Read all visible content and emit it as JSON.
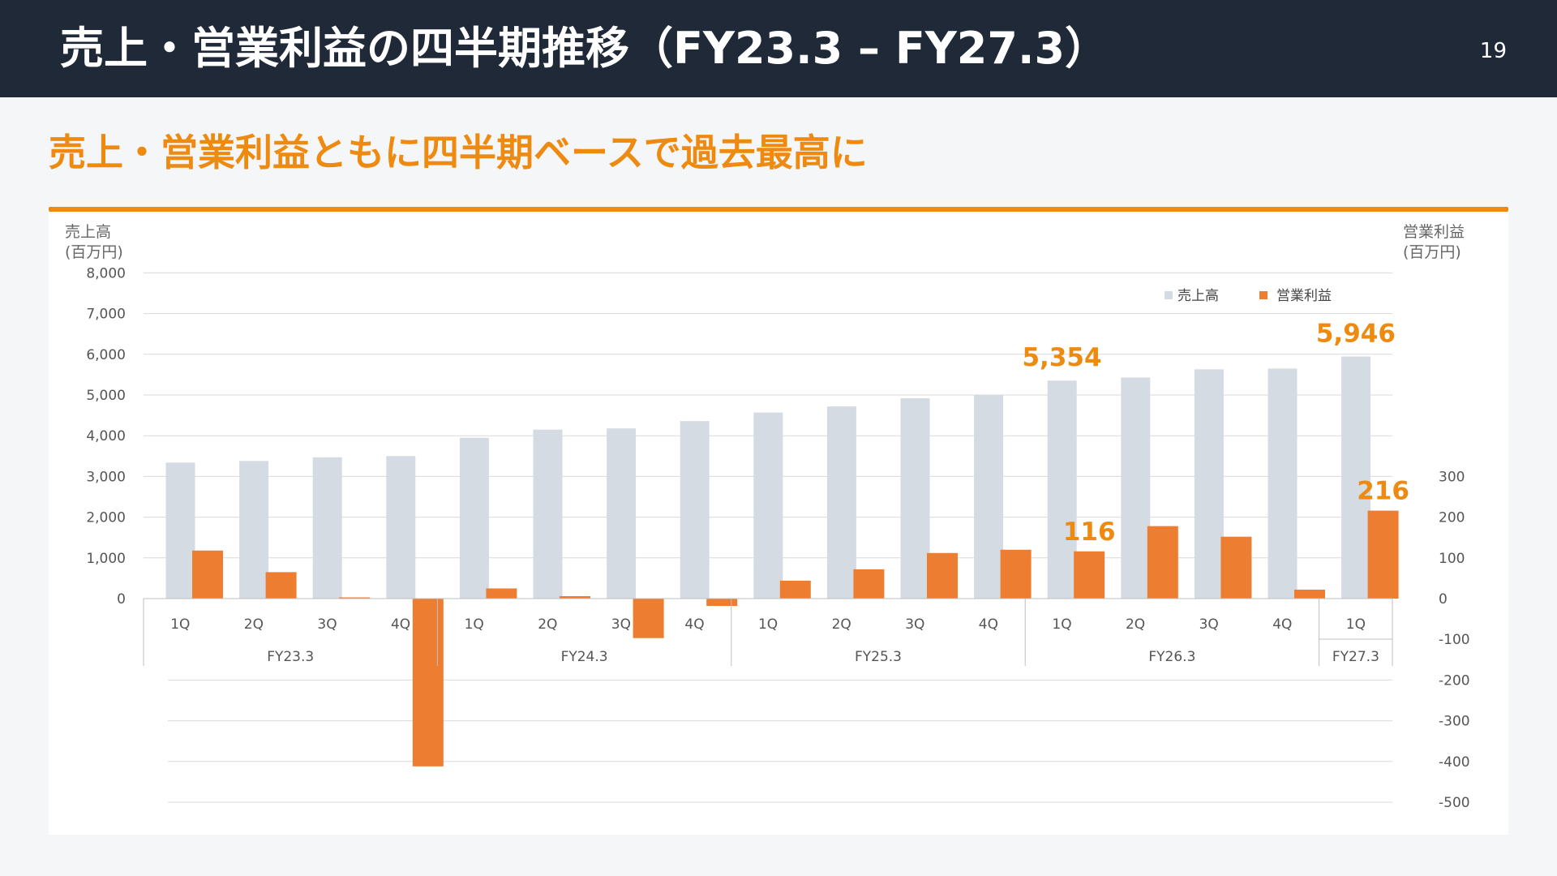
{
  "header": {
    "title": "売上・営業利益の四半期推移（FY23.3 – FY27.3）",
    "page_number": "19"
  },
  "subtitle": "売上・営業利益ともに四半期ベースで過去最高に",
  "colors": {
    "header_bg": "#1f2937",
    "accent": "#ed8a0f",
    "sales_bar": "#d5dbe2",
    "profit_bar": "#ed7d31"
  },
  "chart_data": {
    "type": "bar",
    "left_axis": {
      "title_line1": "売上高",
      "title_line2": "(百万円)",
      "ylim": [
        0,
        8000
      ],
      "ticks": [
        "8,000",
        "7,000",
        "6,000",
        "5,000",
        "4,000",
        "3,000",
        "2,000",
        "1,000",
        "0"
      ]
    },
    "right_axis": {
      "title_line1": "営業利益",
      "title_line2": "(百万円)",
      "ylim": [
        -500,
        300
      ],
      "ticks": [
        "300",
        "200",
        "100",
        "0",
        "-100",
        "-200",
        "-300",
        "-400",
        "-500"
      ]
    },
    "quarters": [
      "1Q",
      "2Q",
      "3Q",
      "4Q",
      "1Q",
      "2Q",
      "3Q",
      "4Q",
      "1Q",
      "2Q",
      "3Q",
      "4Q",
      "1Q",
      "2Q",
      "3Q",
      "4Q",
      "1Q"
    ],
    "fiscal_years": [
      {
        "label": "FY23.3",
        "quarters": 4
      },
      {
        "label": "FY24.3",
        "quarters": 4
      },
      {
        "label": "FY25.3",
        "quarters": 4
      },
      {
        "label": "FY26.3",
        "quarters": 4
      },
      {
        "label": "FY27.3",
        "quarters": 1
      }
    ],
    "series": [
      {
        "name": "売上高",
        "axis": "left",
        "values": [
          3340,
          3380,
          3470,
          3500,
          3950,
          4150,
          4180,
          4360,
          4570,
          4720,
          4920,
          5010,
          5354,
          5430,
          5630,
          5650,
          5946
        ]
      },
      {
        "name": "営業利益",
        "axis": "right",
        "values": [
          118,
          65,
          3,
          -412,
          25,
          6,
          -97,
          -18,
          44,
          72,
          112,
          120,
          116,
          178,
          152,
          22,
          216
        ]
      }
    ],
    "annotations": [
      {
        "text": "5,354",
        "series": 0,
        "index": 12
      },
      {
        "text": "5,946",
        "series": 0,
        "index": 16
      },
      {
        "text": "116",
        "series": 1,
        "index": 12
      },
      {
        "text": "216",
        "series": 1,
        "index": 16
      }
    ],
    "legend_position": "top-right",
    "grid": true
  }
}
